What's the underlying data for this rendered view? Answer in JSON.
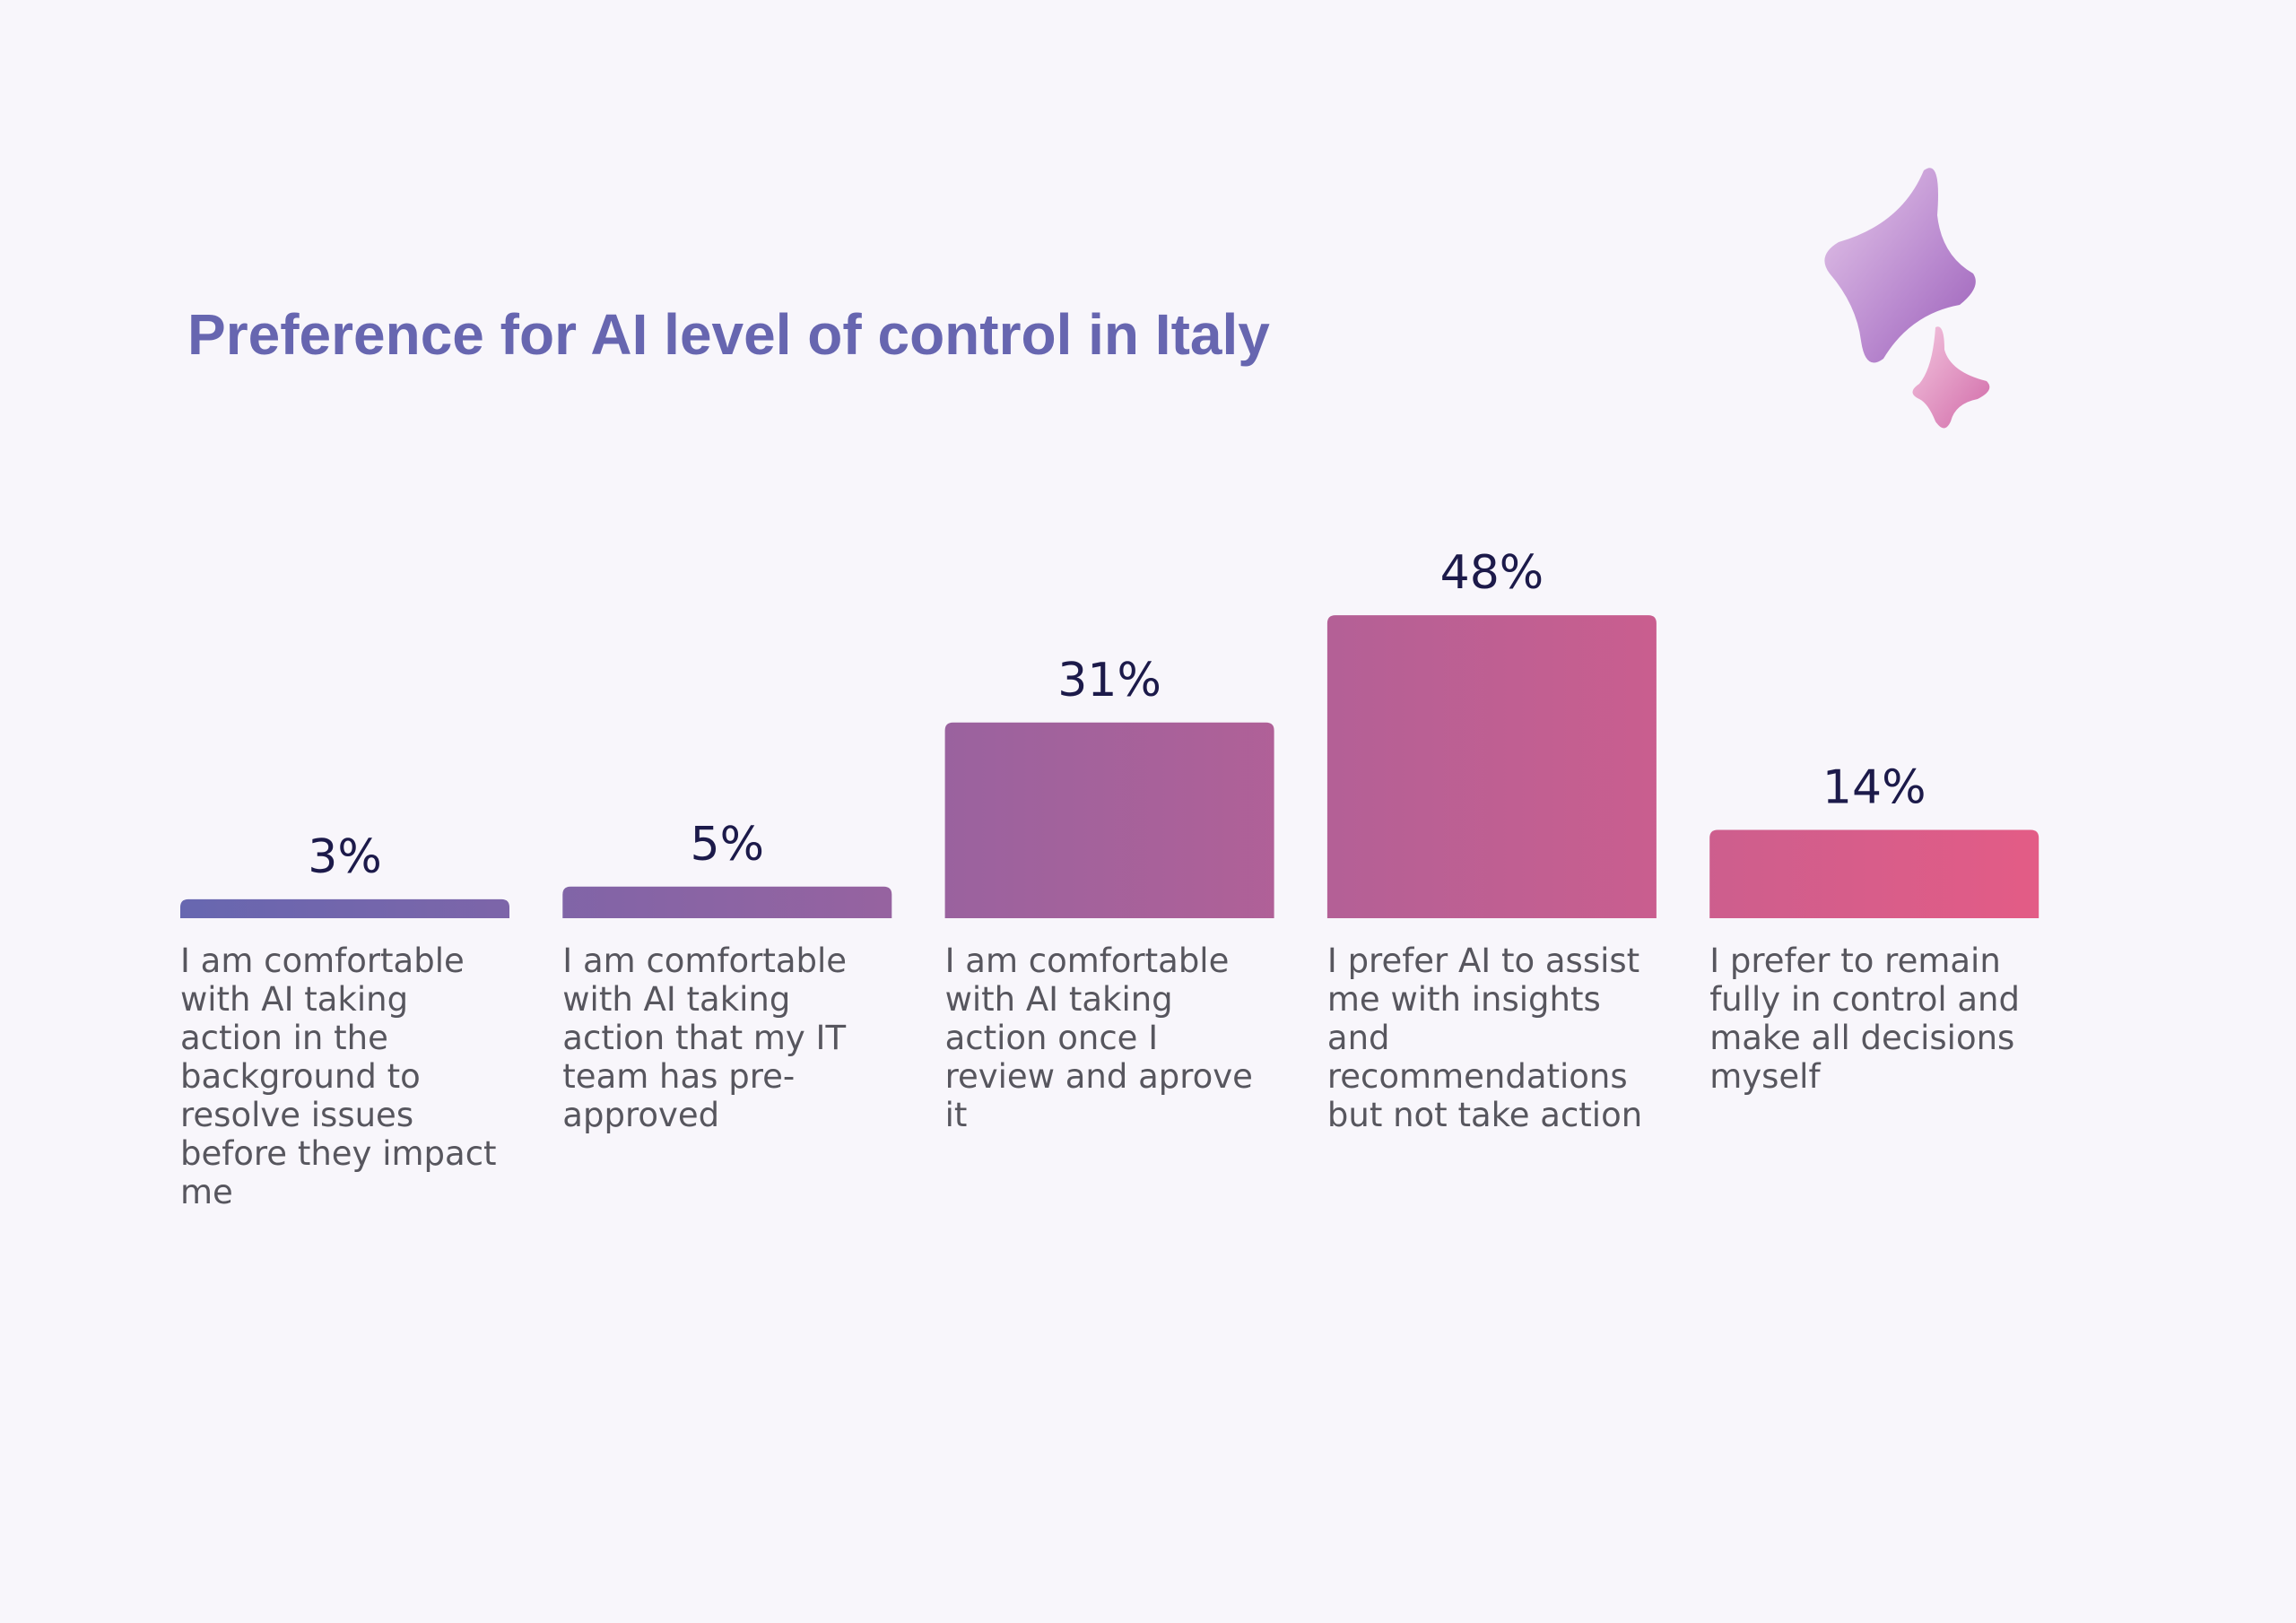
{
  "chart_data": {
    "type": "bar",
    "title": "Preference for AI level of control in Italy",
    "categories": [
      "I am comfortable with AI taking action in the background to resolve issues before they impact me",
      "I am comfortable with AI taking action that my IT team has pre-approved",
      "I am comfortable with AI taking action once I review and aprove it",
      "I prefer AI to assist me with insights and recommendations but not take action",
      "I prefer to remain fully in control and make all decisions myself"
    ],
    "values": [
      3,
      5,
      31,
      48,
      14
    ],
    "value_labels": [
      "3%",
      "5%",
      "31%",
      "48%",
      "14%"
    ],
    "gradient": [
      "#6767b0",
      "#e35c86"
    ]
  }
}
